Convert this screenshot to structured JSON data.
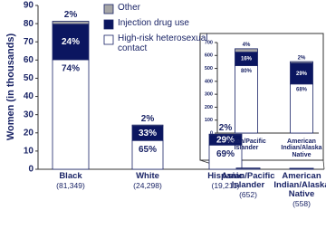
{
  "chart_data": [
    {
      "type": "stacked_bar",
      "ylabel": "Women (in thousands)",
      "categories": [
        "Black",
        "White",
        "Hispanic",
        "Asian/Pacific Islander",
        "American Indian/Alaska Native"
      ],
      "category_totals": [
        "(81,349)",
        "(24,298)",
        "(19,211)",
        "(652)",
        "(558)"
      ],
      "series": [
        {
          "name": "High-risk heterosexual contact",
          "color": "#ffffff",
          "values": [
            60.2,
            15.8,
            13.3,
            0.52,
            0.38
          ],
          "value_labels": [
            "74%",
            "65%",
            "69%",
            null,
            null
          ]
        },
        {
          "name": "Injection drug use",
          "color": "#0b1660",
          "values": [
            19.5,
            8.0,
            5.6,
            0.1,
            0.16
          ],
          "value_labels": [
            "24%",
            "33%",
            "29%",
            null,
            null
          ]
        },
        {
          "name": "Other",
          "color": "#a6a6a6",
          "values": [
            1.6,
            0.5,
            0.4,
            0.03,
            0.01
          ],
          "value_labels": [
            "2%",
            "2%",
            "2%",
            null,
            null
          ]
        }
      ],
      "ylim": [
        0,
        90
      ],
      "yticks": [
        0,
        10,
        20,
        30,
        40,
        50,
        60,
        70,
        80,
        90
      ],
      "legend": "top"
    },
    {
      "type": "stacked_bar",
      "categories": [
        "Asian/Pacific Islander",
        "American Indian/Alaska Native"
      ],
      "series": [
        {
          "name": "High-risk heterosexual contact",
          "color": "#ffffff",
          "values": [
            521.6,
            379.4
          ],
          "value_labels": [
            "80%",
            "68%"
          ]
        },
        {
          "name": "Injection drug use",
          "color": "#0b1660",
          "values": [
            104.3,
            161.8
          ],
          "value_labels": [
            "16%",
            "29%"
          ]
        },
        {
          "name": "Other",
          "color": "#a6a6a6",
          "values": [
            26.1,
            11.2
          ],
          "value_labels": [
            "4%",
            "2%"
          ]
        }
      ],
      "ylim": [
        0,
        700
      ],
      "yticks": [
        0,
        100,
        200,
        300,
        400,
        500,
        600,
        700
      ]
    }
  ]
}
